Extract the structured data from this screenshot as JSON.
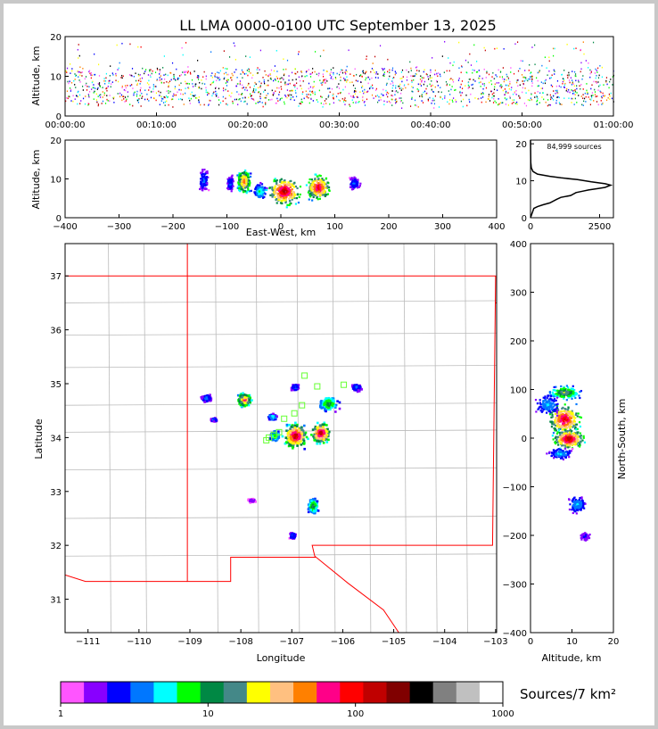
{
  "title": "LL LMA 0000-0100 UTC September 13, 2025",
  "colors": {
    "density_scale": [
      "#ff55ff",
      "#8800ff",
      "#0000ff",
      "#0077ff",
      "#00ffff",
      "#00ff00",
      "#008844",
      "#448888",
      "#ffff00",
      "#ffc080",
      "#ff8000",
      "#ff0088",
      "#ff0000",
      "#c00000",
      "#800000",
      "#000000",
      "#808080",
      "#c0c0c0",
      "#ffffff"
    ],
    "state_border": "#ff0000",
    "county_lines": "#bbbbbb",
    "network_station": "#66ff33"
  },
  "chart_data": [
    {
      "id": "time-altitude",
      "type": "scatter",
      "title": "LL LMA 0000-0100 UTC September 13, 2025",
      "xlabel": "",
      "ylabel": "Altitude, km",
      "x_ticks": [
        "00:00:00",
        "00:10:00",
        "00:20:00",
        "00:30:00",
        "00:40:00",
        "00:50:00",
        "01:00:00"
      ],
      "y_ticks": [
        "0",
        "10",
        "20"
      ],
      "xlim_minutes": [
        0,
        60
      ],
      "ylim": [
        0,
        20
      ],
      "altitude_band_km": [
        3,
        12
      ]
    },
    {
      "id": "eastwest-altitude",
      "type": "heatmap",
      "xlabel": "East-West, km",
      "ylabel": "Altitude, km",
      "x_ticks": [
        "−400",
        "−300",
        "−200",
        "−100",
        "0",
        "100",
        "200",
        "300",
        "400"
      ],
      "y_ticks": [
        "0",
        "10",
        "20"
      ],
      "xlim": [
        -400,
        400
      ],
      "ylim": [
        0,
        20
      ],
      "clusters": [
        {
          "x": -145,
          "z": 10,
          "w": 22,
          "h": 7,
          "level": 3
        },
        {
          "x": -95,
          "z": 9,
          "w": 16,
          "h": 5,
          "level": 3
        },
        {
          "x": -70,
          "z": 9.5,
          "w": 30,
          "h": 8,
          "level": 11
        },
        {
          "x": -40,
          "z": 7,
          "w": 30,
          "h": 5,
          "level": 5
        },
        {
          "x": 5,
          "z": 7,
          "w": 75,
          "h": 9,
          "level": 14
        },
        {
          "x": 68,
          "z": 8,
          "w": 55,
          "h": 8,
          "level": 13
        },
        {
          "x": 135,
          "z": 9,
          "w": 25,
          "h": 4,
          "level": 3
        }
      ]
    },
    {
      "id": "altitude-histogram",
      "type": "line",
      "annotation": "84,999 sources",
      "x_ticks": [
        "0",
        "2500"
      ],
      "y_ticks": [
        "0",
        "10",
        "20"
      ],
      "xlim": [
        0,
        3000
      ],
      "ylim": [
        0,
        21
      ],
      "points": [
        [
          0,
          0
        ],
        [
          120,
          2.5
        ],
        [
          250,
          3
        ],
        [
          450,
          3.5
        ],
        [
          700,
          4
        ],
        [
          950,
          5
        ],
        [
          1100,
          5.5
        ],
        [
          1450,
          6
        ],
        [
          1650,
          6.8
        ],
        [
          1900,
          7.2
        ],
        [
          2100,
          7.5
        ],
        [
          2450,
          7.9
        ],
        [
          2700,
          8.2
        ],
        [
          2900,
          8.8
        ],
        [
          2700,
          9.2
        ],
        [
          2200,
          9.7
        ],
        [
          1700,
          10.3
        ],
        [
          1100,
          10.8
        ],
        [
          700,
          11.2
        ],
        [
          250,
          11.8
        ],
        [
          90,
          12.5
        ],
        [
          30,
          13.5
        ],
        [
          10,
          15
        ],
        [
          0,
          21
        ]
      ]
    },
    {
      "id": "plan-view",
      "type": "heatmap",
      "xlabel": "Longitude",
      "ylabel": "Latitude",
      "x_ticks": [
        "−111",
        "−110",
        "−109",
        "−108",
        "−107",
        "−106",
        "−105",
        "−104",
        "−103"
      ],
      "y_ticks": [
        "31",
        "32",
        "33",
        "34",
        "35",
        "36",
        "37"
      ],
      "xlim": [
        -111.45,
        -102.98
      ],
      "ylim": [
        30.38,
        37.6
      ],
      "clusters": [
        {
          "lon": -108.7,
          "lat": 34.75,
          "w": 0.25,
          "h": 0.18,
          "level": 3
        },
        {
          "lon": -108.55,
          "lat": 34.35,
          "w": 0.15,
          "h": 0.08,
          "level": 3
        },
        {
          "lon": -107.95,
          "lat": 34.72,
          "w": 0.35,
          "h": 0.32,
          "level": 11
        },
        {
          "lon": -107.4,
          "lat": 34.4,
          "w": 0.2,
          "h": 0.14,
          "level": 5
        },
        {
          "lon": -107.35,
          "lat": 34.05,
          "w": 0.25,
          "h": 0.25,
          "level": 6
        },
        {
          "lon": -106.95,
          "lat": 34.95,
          "w": 0.2,
          "h": 0.15,
          "level": 3
        },
        {
          "lon": -106.95,
          "lat": 34.05,
          "w": 0.55,
          "h": 0.55,
          "level": 14
        },
        {
          "lon": -106.45,
          "lat": 34.1,
          "w": 0.45,
          "h": 0.45,
          "level": 14
        },
        {
          "lon": -106.3,
          "lat": 34.65,
          "w": 0.45,
          "h": 0.35,
          "level": 7
        },
        {
          "lon": -105.75,
          "lat": 34.95,
          "w": 0.25,
          "h": 0.18,
          "level": 3
        },
        {
          "lon": -106.6,
          "lat": 32.75,
          "w": 0.25,
          "h": 0.35,
          "level": 7
        },
        {
          "lon": -107.0,
          "lat": 32.2,
          "w": 0.15,
          "h": 0.15,
          "level": 3
        },
        {
          "lon": -107.8,
          "lat": 32.85,
          "w": 0.2,
          "h": 0.08,
          "level": 1
        }
      ],
      "stations": [
        [
          -106.75,
          35.15
        ],
        [
          -106.5,
          34.95
        ],
        [
          -105.98,
          34.98
        ],
        [
          -106.8,
          34.6
        ],
        [
          -107.15,
          34.35
        ],
        [
          -107.25,
          34.1
        ],
        [
          -107.45,
          34.0
        ],
        [
          -107.5,
          33.95
        ],
        [
          -106.95,
          34.45
        ],
        [
          -107.35,
          34.05
        ]
      ]
    },
    {
      "id": "northsouth-altitude",
      "type": "heatmap",
      "xlabel": "Altitude, km",
      "ylabel": "North-South, km",
      "x_ticks": [
        "0",
        "10",
        "20"
      ],
      "y_ticks": [
        "−400",
        "−300",
        "−200",
        "−100",
        "0",
        "100",
        "200",
        "300",
        "400"
      ],
      "xlim": [
        0,
        20
      ],
      "ylim": [
        -400,
        400
      ],
      "clusters": [
        {
          "z": 8,
          "y": 95,
          "w": 9,
          "h": 35,
          "level": 8
        },
        {
          "z": 8,
          "y": 40,
          "w": 10,
          "h": 80,
          "level": 13
        },
        {
          "z": 9,
          "y": 0,
          "w": 9,
          "h": 50,
          "level": 14
        },
        {
          "z": 4,
          "y": 70,
          "w": 7,
          "h": 50,
          "level": 4
        },
        {
          "z": 7,
          "y": -30,
          "w": 7,
          "h": 25,
          "level": 4
        },
        {
          "z": 11,
          "y": -135,
          "w": 5,
          "h": 40,
          "level": 4
        },
        {
          "z": 13,
          "y": -200,
          "w": 3,
          "h": 20,
          "level": 2
        }
      ]
    },
    {
      "id": "density-colorbar",
      "type": "heatmap",
      "label": "Sources/7 km²",
      "ticks": [
        "1",
        "10",
        "100",
        "1000"
      ],
      "range": [
        1,
        1000
      ],
      "scale": "log"
    }
  ]
}
